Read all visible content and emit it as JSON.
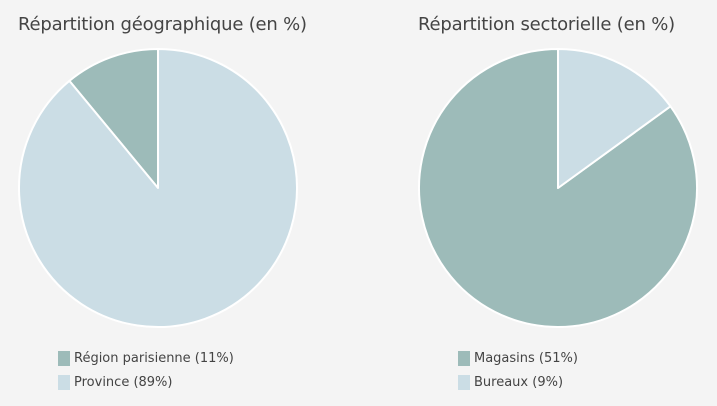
{
  "chart_data": [
    {
      "type": "pie",
      "title": "Répartition géographique (en %)",
      "categories": [
        "Région parisienne (11%)",
        "Province (89%)"
      ],
      "values": [
        11,
        89
      ],
      "colors": [
        "#9dbbb9",
        "#cbdde5"
      ],
      "legend_position": "bottom-left"
    },
    {
      "type": "pie",
      "title": "Répartition sectorielle (en %)",
      "categories": [
        "Magasins (51%)",
        "Bureaux (9%)"
      ],
      "values": [
        85,
        15
      ],
      "colors": [
        "#9dbbb9",
        "#cbdde5"
      ],
      "legend_position": "bottom-left"
    }
  ]
}
